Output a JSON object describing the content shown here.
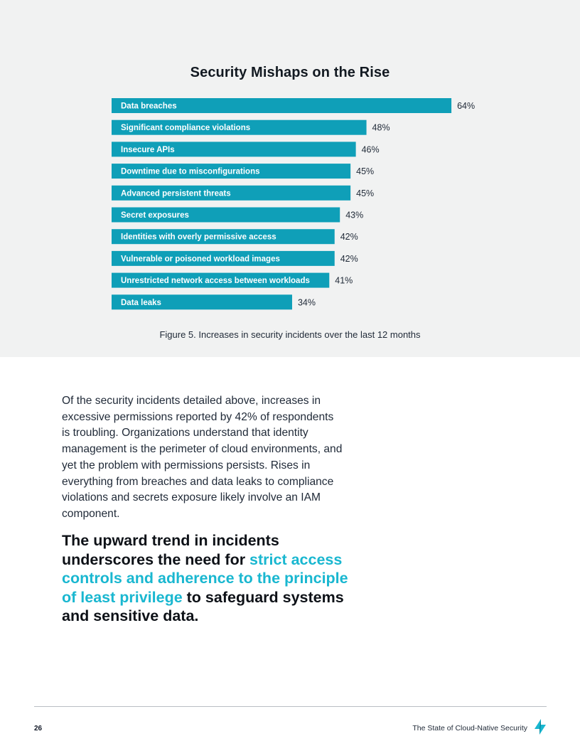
{
  "colors": {
    "bar": "#0f9fb8",
    "highlight": "#19b7d0",
    "panel": "#f1f2f2"
  },
  "chart_data": {
    "type": "bar",
    "orientation": "horizontal",
    "title": "Security Mishaps on the Rise",
    "categories": [
      "Data breaches",
      "Significant compliance violations",
      "Insecure APIs",
      "Downtime due to misconfigurations",
      "Advanced persistent threats",
      "Secret exposures",
      "Identities with overly permissive access",
      "Vulnerable or poisoned workload images",
      "Unrestricted network access between workloads",
      "Data leaks"
    ],
    "values": [
      64,
      48,
      46,
      45,
      45,
      43,
      42,
      42,
      41,
      34
    ],
    "value_labels": [
      "64%",
      "48%",
      "46%",
      "45%",
      "45%",
      "43%",
      "42%",
      "42%",
      "41%",
      "34%"
    ],
    "unit": "%",
    "xlim": [
      0,
      100
    ],
    "grid": false,
    "legend": "none"
  },
  "figure_caption": "Figure 5. Increases in security incidents over the last 12 months",
  "body_paragraph": "Of the security incidents detailed above, increases in excessive permissions reported by 42% of respondents is troubling. Organizations understand that identity management is the perimeter of cloud environments, and yet the problem with permissions persists. Rises in everything from breaches and data leaks to compliance violations and secrets exposure likely involve an IAM component.",
  "callout": {
    "part1": "The upward trend in incidents underscores the need for ",
    "highlight": "strict access controls and adherence to the principle of least privilege",
    "part2": " to safeguard systems and sensitive data."
  },
  "footer": {
    "page_number": "26",
    "document_title": "The State of Cloud-Native Security",
    "logo_icon": "brand-logo-icon"
  }
}
